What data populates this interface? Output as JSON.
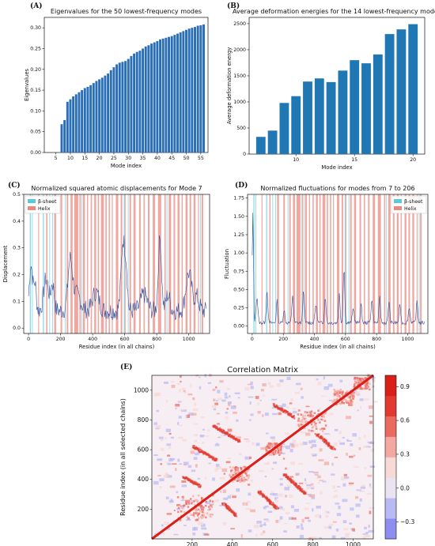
{
  "panels": {
    "a": "(A)",
    "b": "(B)",
    "c": "(C)",
    "d": "(D)",
    "e": "(E)"
  },
  "chart_data": [
    {
      "id": "A",
      "type": "bar",
      "title": "Eigenvalues for the 50 lowest-frequency modes",
      "xlabel": "Mode index",
      "ylabel": "Eigenvalues",
      "x": [
        7,
        8,
        9,
        10,
        11,
        12,
        13,
        14,
        15,
        16,
        17,
        18,
        19,
        20,
        21,
        22,
        23,
        24,
        25,
        26,
        27,
        28,
        29,
        30,
        31,
        32,
        33,
        34,
        35,
        36,
        37,
        38,
        39,
        40,
        41,
        42,
        43,
        44,
        45,
        46,
        47,
        48,
        49,
        50,
        51,
        52,
        53,
        54,
        55,
        56
      ],
      "values": [
        0.068,
        0.078,
        0.122,
        0.128,
        0.135,
        0.14,
        0.145,
        0.15,
        0.155,
        0.158,
        0.162,
        0.167,
        0.172,
        0.176,
        0.18,
        0.185,
        0.19,
        0.198,
        0.205,
        0.212,
        0.216,
        0.218,
        0.22,
        0.225,
        0.232,
        0.238,
        0.242,
        0.245,
        0.25,
        0.255,
        0.258,
        0.262,
        0.265,
        0.268,
        0.272,
        0.274,
        0.276,
        0.278,
        0.28,
        0.283,
        0.286,
        0.289,
        0.292,
        0.295,
        0.298,
        0.3,
        0.302,
        0.305,
        0.306,
        0.308
      ],
      "xticks": [
        "5",
        "10",
        "15",
        "20",
        "25",
        "30",
        "35",
        "40",
        "45",
        "50",
        "55"
      ],
      "xtick_values": [
        5,
        10,
        15,
        20,
        25,
        30,
        35,
        40,
        45,
        50,
        55
      ],
      "yticks": [
        "0.00",
        "0.05",
        "0.10",
        "0.15",
        "0.20",
        "0.25",
        "0.30"
      ],
      "ytick_values": [
        0,
        0.05,
        0.1,
        0.15,
        0.2,
        0.25,
        0.3
      ],
      "xlim": [
        1,
        57.5
      ],
      "ylim": [
        0,
        0.325
      ],
      "color": "#2a6fb5",
      "grid": false
    },
    {
      "id": "B",
      "type": "bar",
      "title": "Average deformation energies for the 14 lowest-frequency modes",
      "xlabel": "Mode index",
      "ylabel": "Average deformation energy",
      "x": [
        7,
        8,
        9,
        10,
        11,
        12,
        13,
        14,
        15,
        16,
        17,
        18,
        19,
        20
      ],
      "values": [
        330,
        450,
        980,
        1110,
        1390,
        1450,
        1380,
        1600,
        1800,
        1740,
        1910,
        2300,
        2390,
        2490
      ],
      "xticks": [
        "10",
        "15",
        "20"
      ],
      "xtick_values": [
        10,
        15,
        20
      ],
      "yticks": [
        "0",
        "500",
        "1000",
        "1500",
        "2000",
        "2500"
      ],
      "ytick_values": [
        0,
        500,
        1000,
        1500,
        2000,
        2500
      ],
      "xlim": [
        6,
        21
      ],
      "ylim": [
        0,
        2620
      ],
      "color": "#1f77b4",
      "grid": false
    },
    {
      "id": "C",
      "type": "line",
      "title": "Normalized squared atomic displacements for Mode 7",
      "xlabel": "Residue index (in all chains)",
      "ylabel": "Displacement",
      "legend": [
        "β-sheet",
        "Helix"
      ],
      "legend_placement": "top-left",
      "xticks": [
        "0",
        "200",
        "400",
        "600",
        "800",
        "1000"
      ],
      "xtick_values": [
        0,
        200,
        400,
        600,
        800,
        1000
      ],
      "yticks": [
        "0.0",
        "0.1",
        "0.2",
        "0.3",
        "0.4",
        "0.5"
      ],
      "ytick_values": [
        0,
        0.1,
        0.2,
        0.3,
        0.4,
        0.5
      ],
      "xlim": [
        -30,
        1130
      ],
      "ylim": [
        -0.02,
        0.5
      ],
      "line_color": "#2b4fa0",
      "sheet_color": "#5bc8dc",
      "helix_color": "#e98a80"
    },
    {
      "id": "D",
      "type": "line",
      "title": "Normalized fluctuations for modes from 7 to 206",
      "xlabel": "Residue index (in all chains)",
      "ylabel": "Fluctuation",
      "legend": [
        "β-sheet",
        "Helix"
      ],
      "legend_placement": "top-right",
      "xticks": [
        "0",
        "200",
        "400",
        "600",
        "800",
        "1000"
      ],
      "xtick_values": [
        0,
        200,
        400,
        600,
        800,
        1000
      ],
      "yticks": [
        "0.00",
        "0.25",
        "0.50",
        "0.75",
        "1.00",
        "1.25",
        "1.50",
        "1.75"
      ],
      "ytick_values": [
        0,
        0.25,
        0.5,
        0.75,
        1,
        1.25,
        1.5,
        1.75
      ],
      "xlim": [
        -30,
        1130
      ],
      "ylim": [
        -0.1,
        1.8
      ],
      "line_color": "#2b4fa0",
      "sheet_color": "#5bc8dc",
      "helix_color": "#e98a80"
    },
    {
      "id": "E",
      "type": "heatmap",
      "title": "Correlation Matrix",
      "xlabel": "Residue index (in all selected chains)",
      "ylabel": "Residue index (in all selected chains)",
      "xticks": [
        "200",
        "400",
        "600",
        "800",
        "1000"
      ],
      "xtick_values": [
        200,
        400,
        600,
        800,
        1000
      ],
      "yticks": [
        "200",
        "400",
        "600",
        "800",
        "1000"
      ],
      "ytick_values": [
        200,
        400,
        600,
        800,
        1000
      ],
      "range": [
        0,
        1100
      ],
      "colorbar_ticks": [
        "0.9",
        "0.6",
        "0.3",
        "0.0",
        "−0.3"
      ],
      "colorbar_values": [
        0.9,
        0.6,
        0.3,
        0.0,
        -0.3
      ],
      "colorbar_range": [
        -0.45,
        1.0
      ],
      "colorbar_colors": [
        "#8e8ef0",
        "#b9b9f4",
        "#e9e3f2",
        "#f7d9d6",
        "#f3a8a1",
        "#ea6a60",
        "#e23a30",
        "#d91f17"
      ]
    }
  ]
}
